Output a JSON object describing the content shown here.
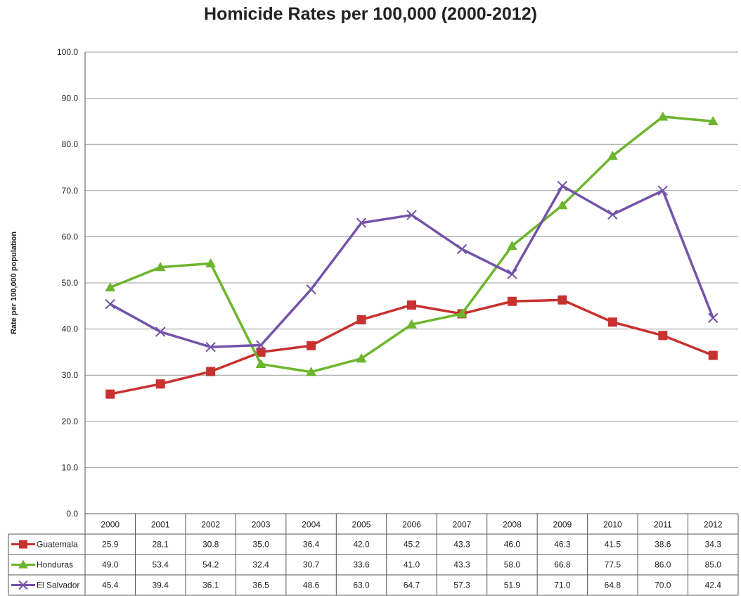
{
  "chart_data": {
    "type": "line",
    "title": "Homicide Rates per 100,000 (2000-2012)",
    "xlabel": "",
    "ylabel": "Rate per 100,000 population",
    "categories": [
      "2000",
      "2001",
      "2002",
      "2003",
      "2004",
      "2005",
      "2006",
      "2007",
      "2008",
      "2009",
      "2010",
      "2011",
      "2012"
    ],
    "ylim": [
      0,
      100
    ],
    "yticks": [
      "0.0",
      "10.0",
      "20.0",
      "30.0",
      "40.0",
      "50.0",
      "60.0",
      "70.0",
      "80.0",
      "90.0",
      "100.0"
    ],
    "grid": true,
    "legend": "data-table-left",
    "series": [
      {
        "name": "Guatemala",
        "color": "#c8312f",
        "marker": "square",
        "values": [
          25.9,
          28.1,
          30.8,
          35.0,
          36.4,
          42.0,
          45.2,
          43.3,
          46.0,
          46.3,
          41.5,
          38.6,
          34.3
        ],
        "labels": [
          "25.9",
          "28.1",
          "30.8",
          "35.0",
          "36.4",
          "42.0",
          "45.2",
          "43.3",
          "46.0",
          "46.3",
          "41.5",
          "38.6",
          "34.3"
        ]
      },
      {
        "name": "Honduras",
        "color": "#6cb52d",
        "marker": "triangle",
        "values": [
          49.0,
          53.4,
          54.2,
          32.4,
          30.7,
          33.6,
          41.0,
          43.3,
          58.0,
          66.8,
          77.5,
          86.0,
          85.0
        ],
        "labels": [
          "49.0",
          "53.4",
          "54.2",
          "32.4",
          "30.7",
          "33.6",
          "41.0",
          "43.3",
          "58.0",
          "66.8",
          "77.5",
          "86.0",
          "85.0"
        ]
      },
      {
        "name": "El Salvador",
        "color": "#7453a8",
        "marker": "x",
        "values": [
          45.4,
          39.4,
          36.1,
          36.5,
          48.6,
          63.0,
          64.7,
          57.3,
          51.9,
          71.0,
          64.8,
          70.0,
          42.4
        ],
        "labels": [
          "45.4",
          "39.4",
          "36.1",
          "36.5",
          "48.6",
          "63.0",
          "64.7",
          "57.3",
          "51.9",
          "71.0",
          "64.8",
          "70.0",
          "42.4"
        ]
      }
    ]
  }
}
